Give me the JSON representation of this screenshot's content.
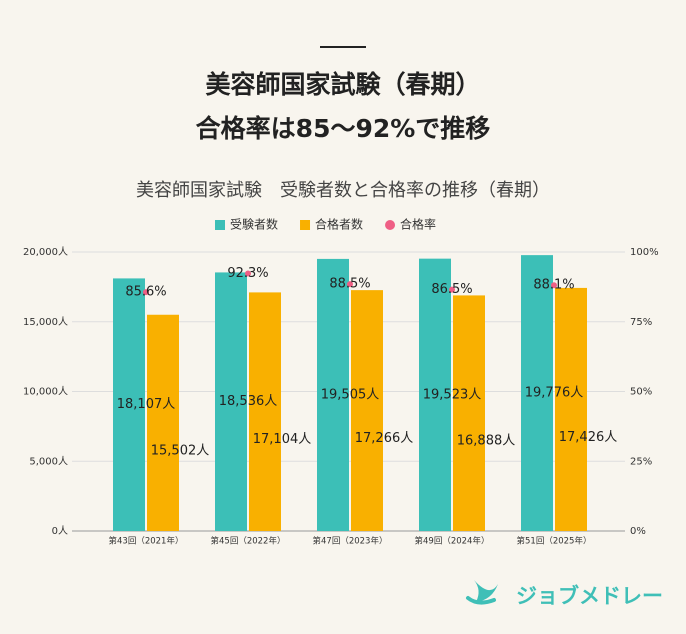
{
  "header": {
    "title": [
      "美容師国家試験（春期）",
      "合格率は85～92%で推移"
    ]
  },
  "chart_data": {
    "type": "bar",
    "title": "美容師国家試験　受験者数と合格率の推移（春期）",
    "categories": [
      "第43回（2021年）",
      "第45回（2022年）",
      "第47回（2023年）",
      "第49回（2024年）",
      "第51回（2025年）"
    ],
    "series": [
      {
        "name": "受験者数",
        "color": "#3cbfb7",
        "values": [
          18107,
          18536,
          19505,
          19523,
          19776
        ],
        "value_labels": [
          "18,107人",
          "18,536人",
          "19,505人",
          "19,523人",
          "19,776人"
        ]
      },
      {
        "name": "合格者数",
        "color": "#f9b000",
        "values": [
          15502,
          17104,
          17266,
          16888,
          17426
        ],
        "value_labels": [
          "15,502人",
          "17,104人",
          "17,266人",
          "16,888人",
          "17,426人"
        ]
      },
      {
        "name": "合格率",
        "type": "line",
        "axis": "y2",
        "color": "#ef5f85",
        "values": [
          85.6,
          92.3,
          88.5,
          86.5,
          88.1
        ],
        "value_labels": [
          "85.6%",
          "92.3%",
          "88.5%",
          "86.5%",
          "88.1%"
        ]
      }
    ],
    "ylim": [
      0,
      20000
    ],
    "yticks": [
      {
        "value": 0,
        "label": "0人"
      },
      {
        "value": 5000,
        "label": "5,000人"
      },
      {
        "value": 10000,
        "label": "10,000人"
      },
      {
        "value": 15000,
        "label": "15,000人"
      },
      {
        "value": 20000,
        "label": "20,000人"
      }
    ],
    "y2lim": [
      0,
      100
    ],
    "y2ticks": [
      {
        "value": 0,
        "label": "0%"
      },
      {
        "value": 25,
        "label": "25%"
      },
      {
        "value": 50,
        "label": "50%"
      },
      {
        "value": 75,
        "label": "75%"
      },
      {
        "value": 100,
        "label": "100%"
      }
    ],
    "grid": true,
    "legend": "top"
  },
  "brand": {
    "name": "ジョブメドレー"
  }
}
